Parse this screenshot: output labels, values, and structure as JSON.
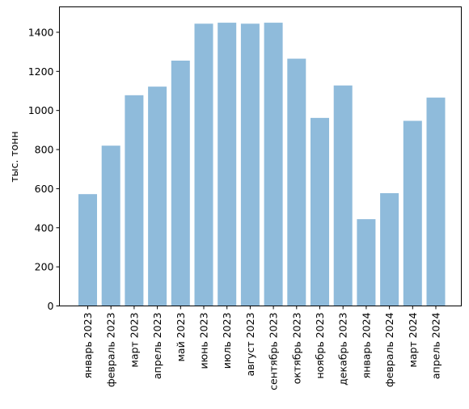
{
  "chart_data": {
    "type": "bar",
    "title": "",
    "xlabel": "",
    "ylabel": "тыс. тонн",
    "ylim": [
      0,
      1530
    ],
    "yticks": [
      0,
      200,
      400,
      600,
      800,
      1000,
      1200,
      1400
    ],
    "grid": false,
    "bar_color": "#8fbbdb",
    "categories": [
      "январь 2023",
      "февраль 2023",
      "март 2023",
      "апрель 2023",
      "май 2023",
      "июнь 2023",
      "июль 2023",
      "август 2023",
      "сентябрь 2023",
      "октябрь 2023",
      "ноябрь 2023",
      "декабрь 2023",
      "январь 2024",
      "февраль 2024",
      "март 2024",
      "апрель 2024"
    ],
    "values": [
      572,
      820,
      1078,
      1122,
      1255,
      1444,
      1449,
      1444,
      1449,
      1265,
      962,
      1128,
      444,
      577,
      947,
      1066
    ]
  }
}
